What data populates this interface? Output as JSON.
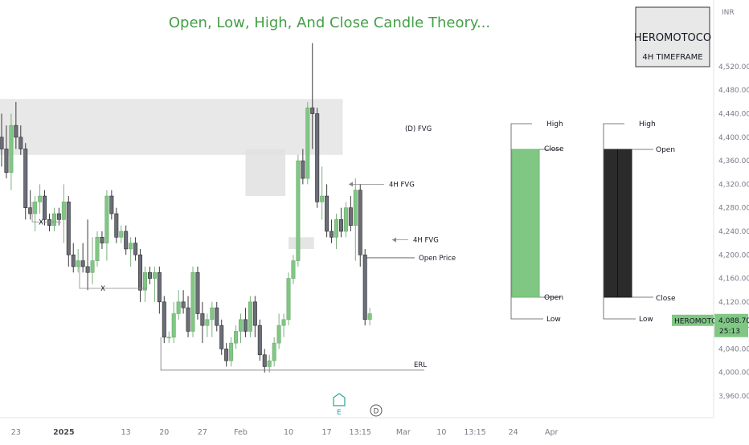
{
  "chart_data": {
    "type": "candlestick",
    "title": "Open, Low, High, And Close Candle Theory...",
    "symbol": {
      "name": "HEROMOTOCO",
      "timeframe": "4H TIMEFRAME"
    },
    "currency": "INR",
    "y_ticks": [
      3960,
      4000,
      4040,
      4080,
      4120,
      4160,
      4200,
      4240,
      4280,
      4320,
      4360,
      4400,
      4440,
      4480,
      4520
    ],
    "y_tick_labels": [
      "3,960.00",
      "4,000.00",
      "4,040.00",
      "4,080.00",
      "4,120.00",
      "4,160.00",
      "4,200.00",
      "4,240.00",
      "4,280.00",
      "4,320.00",
      "4,360.00",
      "4,400.00",
      "4,440.00",
      "4,480.00",
      "4,520.00"
    ],
    "ylim": [
      3945,
      4565
    ],
    "x_ticks": [
      {
        "label": "23",
        "index": 3,
        "bold": false
      },
      {
        "label": "2025",
        "index": 13,
        "bold": true
      },
      {
        "label": "13",
        "index": 26,
        "bold": false
      },
      {
        "label": "20",
        "index": 34,
        "bold": false
      },
      {
        "label": "27",
        "index": 42,
        "bold": false
      },
      {
        "label": "Feb",
        "index": 50,
        "bold": false
      },
      {
        "label": "10",
        "index": 60,
        "bold": false
      },
      {
        "label": "17",
        "index": 68,
        "bold": false
      },
      {
        "label": "13:15",
        "index": 75,
        "bold": false
      },
      {
        "label": "Mar",
        "index": 84,
        "bold": false
      },
      {
        "label": "10",
        "index": 92,
        "bold": false
      },
      {
        "label": "13:15",
        "index": 99,
        "bold": false
      },
      {
        "label": "24",
        "index": 107,
        "bold": false
      },
      {
        "label": "Apr",
        "index": 115,
        "bold": false
      }
    ],
    "candles": [
      [
        4400,
        4440,
        4350,
        4380
      ],
      [
        4380,
        4420,
        4330,
        4340
      ],
      [
        4340,
        4440,
        4310,
        4420
      ],
      [
        4420,
        4460,
        4380,
        4400
      ],
      [
        4400,
        4420,
        4370,
        4380
      ],
      [
        4380,
        4390,
        4260,
        4280
      ],
      [
        4280,
        4310,
        4260,
        4270
      ],
      [
        4270,
        4300,
        4240,
        4290
      ],
      [
        4290,
        4320,
        4270,
        4300
      ],
      [
        4300,
        4310,
        4250,
        4260
      ],
      [
        4260,
        4270,
        4240,
        4250
      ],
      [
        4250,
        4280,
        4240,
        4270
      ],
      [
        4270,
        4280,
        4250,
        4260
      ],
      [
        4260,
        4320,
        4220,
        4290
      ],
      [
        4290,
        4300,
        4180,
        4200
      ],
      [
        4200,
        4220,
        4170,
        4180
      ],
      [
        4180,
        4210,
        4170,
        4190
      ],
      [
        4190,
        4220,
        4170,
        4180
      ],
      [
        4180,
        4260,
        4140,
        4170
      ],
      [
        4170,
        4230,
        4150,
        4190
      ],
      [
        4190,
        4240,
        4180,
        4230
      ],
      [
        4230,
        4240,
        4210,
        4220
      ],
      [
        4220,
        4310,
        4190,
        4300
      ],
      [
        4300,
        4310,
        4260,
        4270
      ],
      [
        4270,
        4280,
        4220,
        4230
      ],
      [
        4230,
        4250,
        4220,
        4240
      ],
      [
        4240,
        4250,
        4200,
        4210
      ],
      [
        4210,
        4230,
        4180,
        4220
      ],
      [
        4220,
        4230,
        4190,
        4200
      ],
      [
        4200,
        4210,
        4120,
        4140
      ],
      [
        4140,
        4180,
        4120,
        4170
      ],
      [
        4170,
        4180,
        4150,
        4160
      ],
      [
        4160,
        4180,
        4120,
        4170
      ],
      [
        4170,
        4180,
        4100,
        4120
      ],
      [
        4120,
        4130,
        4050,
        4060
      ],
      [
        4060,
        4070,
        4050,
        4060
      ],
      [
        4060,
        4120,
        4050,
        4100
      ],
      [
        4100,
        4140,
        4090,
        4120
      ],
      [
        4120,
        4140,
        4100,
        4110
      ],
      [
        4110,
        4130,
        4060,
        4070
      ],
      [
        4070,
        4180,
        4060,
        4170
      ],
      [
        4170,
        4180,
        4090,
        4100
      ],
      [
        4100,
        4120,
        4050,
        4080
      ],
      [
        4080,
        4100,
        4060,
        4090
      ],
      [
        4090,
        4120,
        4060,
        4110
      ],
      [
        4110,
        4120,
        4070,
        4080
      ],
      [
        4080,
        4090,
        4030,
        4040
      ],
      [
        4040,
        4050,
        4010,
        4020
      ],
      [
        4020,
        4060,
        4010,
        4050
      ],
      [
        4050,
        4080,
        4040,
        4070
      ],
      [
        4070,
        4100,
        4050,
        4090
      ],
      [
        4090,
        4110,
        4060,
        4070
      ],
      [
        4070,
        4130,
        4060,
        4120
      ],
      [
        4120,
        4130,
        4060,
        4080
      ],
      [
        4080,
        4090,
        4020,
        4030
      ],
      [
        4030,
        4040,
        4000,
        4010
      ],
      [
        4010,
        4030,
        4000,
        4020
      ],
      [
        4020,
        4060,
        4010,
        4050
      ],
      [
        4050,
        4100,
        4040,
        4080
      ],
      [
        4080,
        4100,
        4060,
        4090
      ],
      [
        4090,
        4170,
        4080,
        4160
      ],
      [
        4160,
        4200,
        4150,
        4190
      ],
      [
        4190,
        4370,
        4180,
        4360
      ],
      [
        4360,
        4380,
        4320,
        4330
      ],
      [
        4330,
        4460,
        4320,
        4450
      ],
      [
        4450,
        4560,
        4380,
        4440
      ],
      [
        4440,
        4450,
        4280,
        4290
      ],
      [
        4290,
        4350,
        4260,
        4300
      ],
      [
        4300,
        4320,
        4230,
        4240
      ],
      [
        4240,
        4260,
        4220,
        4230
      ],
      [
        4230,
        4270,
        4210,
        4260
      ],
      [
        4260,
        4280,
        4230,
        4240
      ],
      [
        4240,
        4290,
        4230,
        4280
      ],
      [
        4280,
        4300,
        4240,
        4250
      ],
      [
        4250,
        4330,
        4190,
        4310
      ],
      [
        4310,
        4320,
        4180,
        4200
      ],
      [
        4200,
        4210,
        4080,
        4090
      ],
      [
        4090,
        4110,
        4080,
        4100
      ]
    ],
    "zones": [
      {
        "label": "(D) FVG",
        "from_index": -1,
        "to_index": 71,
        "low": 4370,
        "high": 4465
      },
      {
        "label": "4H FVG",
        "from_index": 51,
        "to_index": 59,
        "low": 4300,
        "high": 4380
      },
      {
        "label": "4H FVG",
        "from_index": 60,
        "to_index": 65,
        "low": 4210,
        "high": 4230
      }
    ],
    "annotations": [
      {
        "label": "(D) FVG",
        "price": 4415
      },
      {
        "label": "4H FVG",
        "price": 4320
      },
      {
        "label": "4H FVG",
        "price": 4220
      },
      {
        "label": "Open Price",
        "price": 4195
      },
      {
        "label": "ERL",
        "price": 4004
      },
      {
        "label": "X",
        "price": 4256
      },
      {
        "label": "X",
        "price": 4143
      }
    ],
    "current_price": {
      "symbol": "HEROMOTOCO",
      "price": "4,088.70",
      "countdown": "25:13"
    },
    "legend_candles": [
      {
        "type": "bullish",
        "labels": {
          "high": "High",
          "close": "Close",
          "open": "Open",
          "low": "Low"
        }
      },
      {
        "type": "bearish",
        "labels": {
          "high": "High",
          "open": "Open",
          "close": "Close",
          "low": "Low"
        }
      }
    ],
    "markers": [
      "E",
      "D"
    ]
  },
  "colors": {
    "up": "#81c784",
    "down": "#3a3a3a",
    "down_body": "#6b6e78",
    "zone": "#e0e0e0",
    "title": "#43a047",
    "axis_text": "#787b86",
    "price_tag": "#81c784"
  }
}
